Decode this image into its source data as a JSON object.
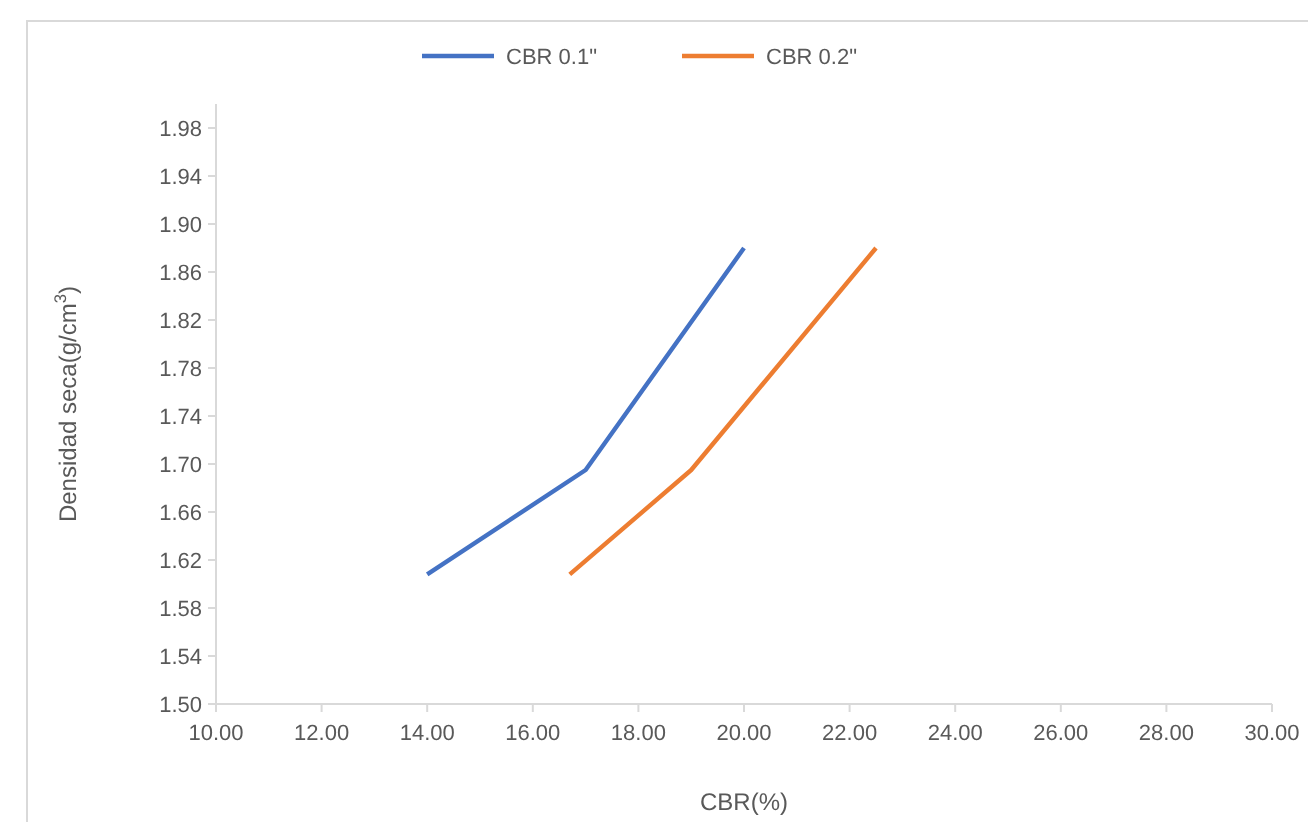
{
  "chart_data": {
    "type": "line",
    "xlabel": "CBR(%)",
    "ylabel": "Densidad  seca(g/cm$^{3}$)",
    "legend": "top",
    "grid": false,
    "line_style": "solid",
    "marker": "none",
    "xlim": [
      10,
      30
    ],
    "xticks": [
      {
        "value": 10,
        "label": "10.00"
      },
      {
        "value": 12,
        "label": "12.00"
      },
      {
        "value": 14,
        "label": "14.00"
      },
      {
        "value": 16,
        "label": "16.00"
      },
      {
        "value": 18,
        "label": "18.00"
      },
      {
        "value": 20,
        "label": "20.00"
      },
      {
        "value": 22,
        "label": "22.00"
      },
      {
        "value": 24,
        "label": "24.00"
      },
      {
        "value": 26,
        "label": "26.00"
      },
      {
        "value": 28,
        "label": "28.00"
      },
      {
        "value": 30,
        "label": "30.00"
      }
    ],
    "ylim": [
      1.5,
      2.0
    ],
    "yticks": [
      {
        "value": 1.5,
        "label": "1.50"
      },
      1.54,
      1.58,
      1.62,
      1.66,
      {
        "value": 1.7,
        "label": "1.70"
      },
      1.74,
      1.78,
      1.82,
      1.86,
      {
        "value": 1.9,
        "label": "1.90"
      },
      1.94,
      1.98
    ],
    "series": [
      {
        "name": "CBR 0.1\"",
        "color": "#4472c4",
        "x": [
          14,
          17,
          20
        ],
        "values": [
          1.608,
          1.695,
          1.88
        ]
      },
      {
        "name": "CBR 0.2\"",
        "color": "#ed7d31",
        "x": [
          16.7,
          19,
          22.5
        ],
        "values": [
          1.608,
          1.695,
          1.88
        ]
      }
    ]
  }
}
